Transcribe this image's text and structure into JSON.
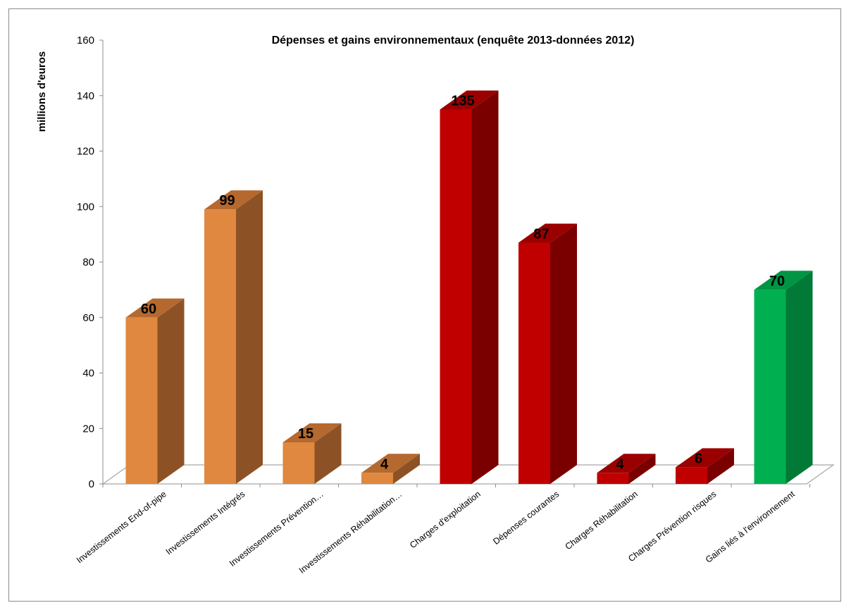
{
  "chart_data": {
    "type": "bar",
    "title": "Dépenses et gains environnementaux (enquête 2013-données 2012)",
    "ylabel": "millions d'euros",
    "xlabel": "",
    "ylim": [
      0,
      160
    ],
    "yticks": [
      0,
      20,
      40,
      60,
      80,
      100,
      120,
      140,
      160
    ],
    "grid": false,
    "legend": "none",
    "style": "3d-column",
    "categories": [
      "Investissements End-of-pipe",
      "Investissements Intégrés",
      "Investissements Prévention…",
      "Investissements Réhabilitation…",
      "Charges d'exploitation",
      "Dépenses courantes",
      "Charges Réhabilitation",
      "Charges Prévention risques",
      "Gains liés à l'environnement"
    ],
    "values": [
      60,
      99,
      15,
      4,
      135,
      87,
      4,
      6,
      70
    ],
    "data_labels": [
      "60",
      "99",
      "15",
      "4",
      "135",
      "87",
      "4",
      "6",
      "70"
    ],
    "colors": [
      {
        "front": "#e0883f",
        "side": "#8c5226",
        "top": "#b5692f"
      },
      {
        "front": "#e0883f",
        "side": "#8c5226",
        "top": "#b5692f"
      },
      {
        "front": "#e0883f",
        "side": "#8c5226",
        "top": "#b5692f"
      },
      {
        "front": "#e0883f",
        "side": "#8c5226",
        "top": "#b5692f"
      },
      {
        "front": "#c00000",
        "side": "#7a0000",
        "top": "#9a0000"
      },
      {
        "front": "#c00000",
        "side": "#7a0000",
        "top": "#9a0000"
      },
      {
        "front": "#c00000",
        "side": "#7a0000",
        "top": "#9a0000"
      },
      {
        "front": "#c00000",
        "side": "#7a0000",
        "top": "#9a0000"
      },
      {
        "front": "#00b050",
        "side": "#007a36",
        "top": "#009443"
      }
    ]
  }
}
